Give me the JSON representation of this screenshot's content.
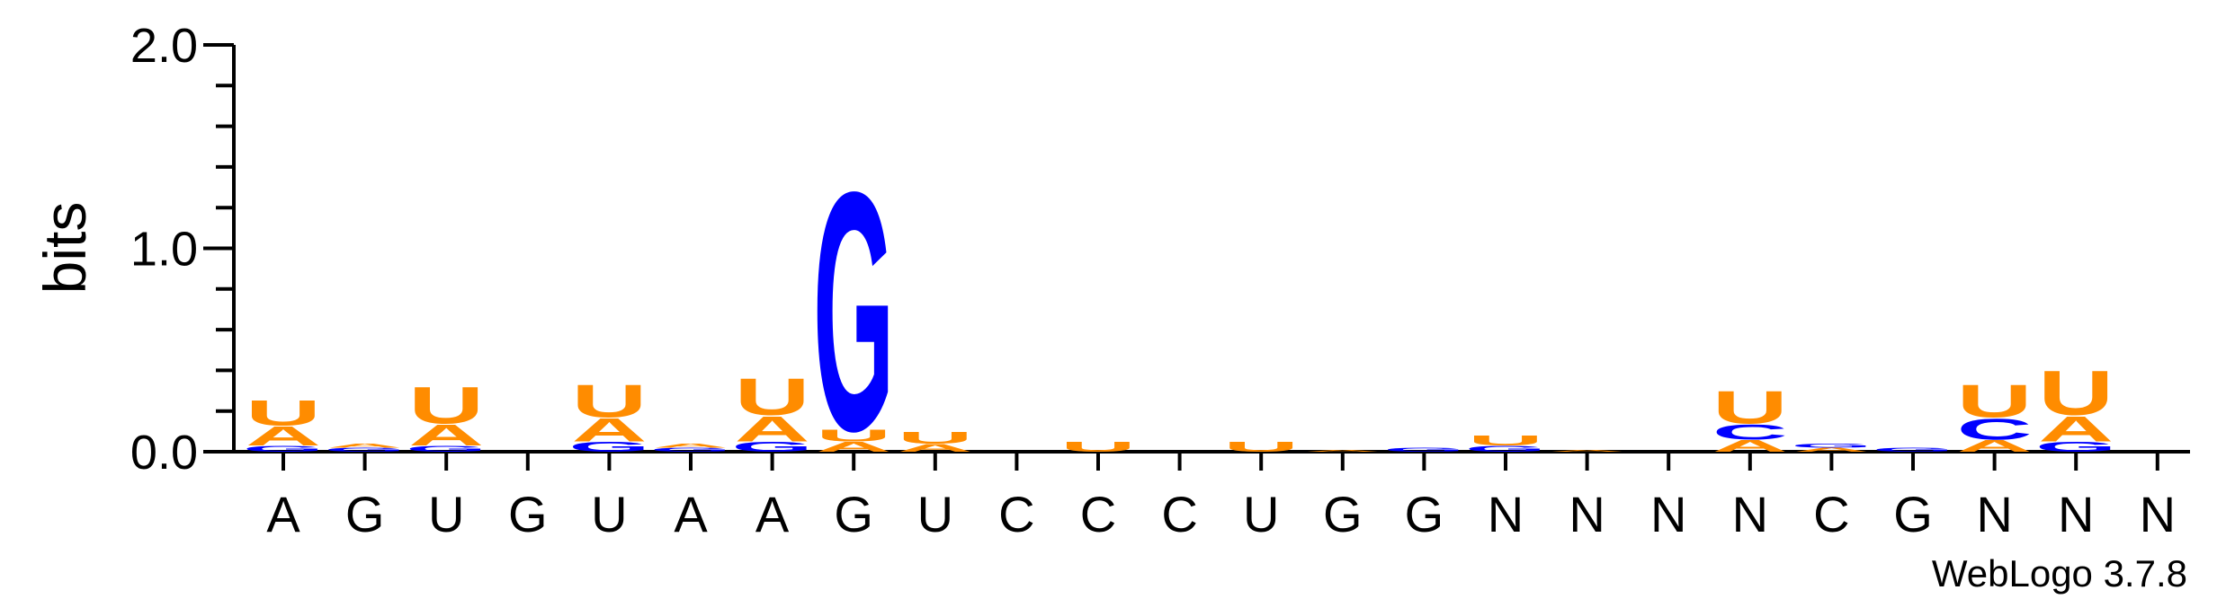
{
  "chart_data": {
    "type": "sequence-logo",
    "title": "",
    "ylabel": "bits",
    "ylim": [
      0,
      2.0
    ],
    "yticks": [
      "0.0",
      "1.0",
      "2.0"
    ],
    "positions": [
      "A",
      "G",
      "U",
      "G",
      "U",
      "A",
      "A",
      "G",
      "U",
      "C",
      "C",
      "C",
      "U",
      "G",
      "G",
      "N",
      "N",
      "N",
      "N",
      "C",
      "G",
      "N",
      "N",
      "N"
    ],
    "colors": {
      "A": "#ff8c00",
      "U": "#ff8c00",
      "G": "#0000ff",
      "C": "#0000ff"
    },
    "stacks": [
      [
        {
          "letter": "G",
          "bits": 0.03
        },
        {
          "letter": "A",
          "bits": 0.1
        },
        {
          "letter": "U",
          "bits": 0.13
        }
      ],
      [
        {
          "letter": "G",
          "bits": 0.02
        },
        {
          "letter": "A",
          "bits": 0.02
        }
      ],
      [
        {
          "letter": "G",
          "bits": 0.03
        },
        {
          "letter": "A",
          "bits": 0.11
        },
        {
          "letter": "U",
          "bits": 0.19
        }
      ],
      [],
      [
        {
          "letter": "G",
          "bits": 0.05
        },
        {
          "letter": "A",
          "bits": 0.12
        },
        {
          "letter": "U",
          "bits": 0.17
        }
      ],
      [
        {
          "letter": "G",
          "bits": 0.02
        },
        {
          "letter": "A",
          "bits": 0.02
        }
      ],
      [
        {
          "letter": "G",
          "bits": 0.05
        },
        {
          "letter": "A",
          "bits": 0.13
        },
        {
          "letter": "U",
          "bits": 0.19
        }
      ],
      [
        {
          "letter": "A",
          "bits": 0.05
        },
        {
          "letter": "U",
          "bits": 0.06
        },
        {
          "letter": "G",
          "bits": 1.24
        }
      ],
      [
        {
          "letter": "A",
          "bits": 0.04
        },
        {
          "letter": "U",
          "bits": 0.06
        }
      ],
      [],
      [
        {
          "letter": "U",
          "bits": 0.05
        }
      ],
      [],
      [
        {
          "letter": "U",
          "bits": 0.05
        }
      ],
      [
        {
          "letter": "A",
          "bits": 0.01
        }
      ],
      [
        {
          "letter": "G",
          "bits": 0.02
        }
      ],
      [
        {
          "letter": "G",
          "bits": 0.03
        },
        {
          "letter": "U",
          "bits": 0.05
        }
      ],
      [
        {
          "letter": "A",
          "bits": 0.01
        }
      ],
      [],
      [
        {
          "letter": "A",
          "bits": 0.06
        },
        {
          "letter": "C",
          "bits": 0.08
        },
        {
          "letter": "U",
          "bits": 0.17
        }
      ],
      [
        {
          "letter": "A",
          "bits": 0.02
        },
        {
          "letter": "G",
          "bits": 0.02
        }
      ],
      [
        {
          "letter": "G",
          "bits": 0.02
        }
      ],
      [
        {
          "letter": "A",
          "bits": 0.06
        },
        {
          "letter": "C",
          "bits": 0.11
        },
        {
          "letter": "U",
          "bits": 0.17
        }
      ],
      [
        {
          "letter": "G",
          "bits": 0.05
        },
        {
          "letter": "A",
          "bits": 0.13
        },
        {
          "letter": "U",
          "bits": 0.23
        }
      ],
      []
    ],
    "credit": "WebLogo 3.7.8"
  }
}
